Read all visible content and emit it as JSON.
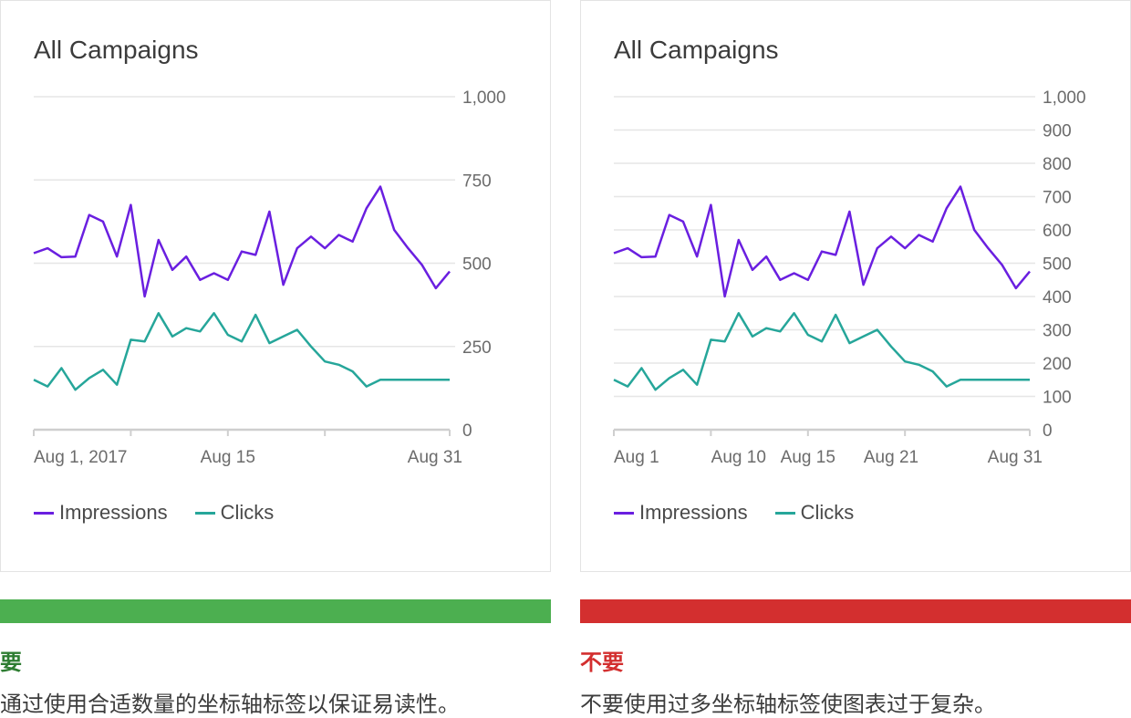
{
  "colors": {
    "impressions": "#6a1fe0",
    "clicks": "#26a69a",
    "grid": "#e6e6e6",
    "axis": "#cfcfcf",
    "do": "#4caf50",
    "dont": "#d32f2f"
  },
  "panels": [
    {
      "title": "All Campaigns",
      "verdict": "要",
      "caption": "通过使用合适数量的坐标轴标签以保证易读性。",
      "chart_data": {
        "type": "line",
        "title": "All Campaigns",
        "x": [
          1,
          2,
          3,
          4,
          5,
          6,
          7,
          8,
          9,
          10,
          11,
          12,
          13,
          14,
          15,
          16,
          17,
          18,
          19,
          20,
          21,
          22,
          23,
          24,
          25,
          26,
          27,
          28,
          29,
          30,
          31
        ],
        "x_tick_values": [
          1,
          15,
          31
        ],
        "x_tick_labels": [
          "Aug 1, 2017",
          "Aug 15",
          "Aug 31"
        ],
        "x_tick_marks": [
          1,
          8,
          15,
          22,
          31
        ],
        "ylim": [
          0,
          1000
        ],
        "y_ticks": [
          0,
          250,
          500,
          750,
          1000
        ],
        "y_tick_labels": [
          "0",
          "250",
          "500",
          "750",
          "1,000"
        ],
        "grid": true,
        "legend": "bottom-left",
        "series": [
          {
            "name": "Impressions",
            "color_key": "impressions",
            "values": [
              530,
              545,
              518,
              520,
              645,
              625,
              520,
              675,
              400,
              570,
              480,
              520,
              450,
              470,
              450,
              535,
              525,
              655,
              435,
              545,
              580,
              545,
              585,
              565,
              665,
              730,
              600,
              545,
              495,
              425,
              475
            ]
          },
          {
            "name": "Clicks",
            "color_key": "clicks",
            "values": [
              150,
              130,
              185,
              120,
              155,
              180,
              135,
              270,
              265,
              350,
              280,
              305,
              295,
              350,
              285,
              265,
              345,
              260,
              280,
              300,
              250,
              205,
              195,
              175,
              130,
              150,
              150,
              150,
              150,
              150,
              150
            ]
          }
        ]
      }
    },
    {
      "title": "All Campaigns",
      "verdict": "不要",
      "caption": "不要使用过多坐标轴标签使图表过于复杂。",
      "chart_data": {
        "type": "line",
        "title": "All Campaigns",
        "x": [
          1,
          2,
          3,
          4,
          5,
          6,
          7,
          8,
          9,
          10,
          11,
          12,
          13,
          14,
          15,
          16,
          17,
          18,
          19,
          20,
          21,
          22,
          23,
          24,
          25,
          26,
          27,
          28,
          29,
          30,
          31
        ],
        "x_tick_values": [
          1,
          10,
          15,
          21,
          31
        ],
        "x_tick_labels": [
          "Aug 1",
          "Aug 10",
          "Aug 15",
          "Aug 21",
          "Aug 31"
        ],
        "x_tick_marks": [
          1,
          8,
          15,
          22,
          31
        ],
        "ylim": [
          0,
          1000
        ],
        "y_ticks": [
          0,
          100,
          200,
          300,
          400,
          500,
          600,
          700,
          800,
          900,
          1000
        ],
        "y_tick_labels": [
          "0",
          "100",
          "200",
          "300",
          "400",
          "500",
          "600",
          "700",
          "800",
          "900",
          "1,000"
        ],
        "grid": true,
        "legend": "bottom-left",
        "series": [
          {
            "name": "Impressions",
            "color_key": "impressions",
            "values": [
              530,
              545,
              518,
              520,
              645,
              625,
              520,
              675,
              400,
              570,
              480,
              520,
              450,
              470,
              450,
              535,
              525,
              655,
              435,
              545,
              580,
              545,
              585,
              565,
              665,
              730,
              600,
              545,
              495,
              425,
              475
            ]
          },
          {
            "name": "Clicks",
            "color_key": "clicks",
            "values": [
              150,
              130,
              185,
              120,
              155,
              180,
              135,
              270,
              265,
              350,
              280,
              305,
              295,
              350,
              285,
              265,
              345,
              260,
              280,
              300,
              250,
              205,
              195,
              175,
              130,
              150,
              150,
              150,
              150,
              150,
              150
            ]
          }
        ]
      }
    }
  ]
}
